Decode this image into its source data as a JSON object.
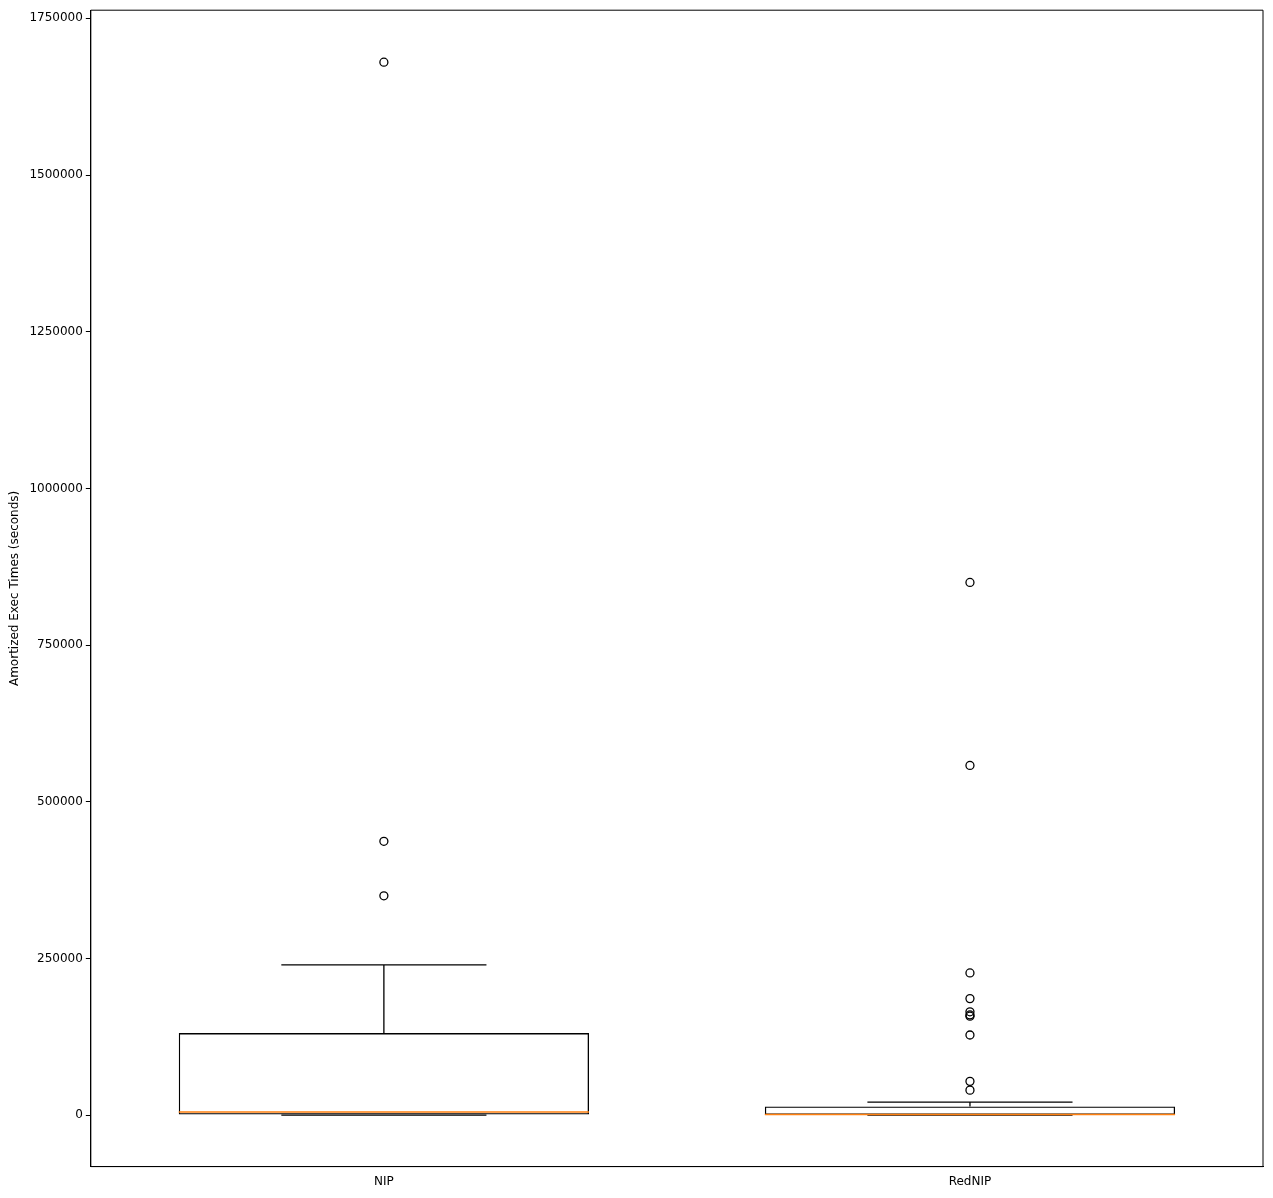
{
  "chart_data": {
    "type": "box",
    "ylabel": "Amortized Exec Times (seconds)",
    "categories": [
      "NIP",
      "RedNIP"
    ],
    "boxes": [
      {
        "low": 100,
        "q1": 1000,
        "median": 5000,
        "q3": 131000,
        "high": 240000,
        "outliers": [
          1680000,
          437000,
          350000
        ]
      },
      {
        "low": 100,
        "q1": 500,
        "median": 1000,
        "q3": 14000,
        "high": 21000,
        "outliers": [
          850000,
          558000,
          227000,
          186000,
          165000,
          160000,
          158000,
          128000,
          54000,
          40000
        ]
      }
    ],
    "ylim": [
      -82000,
      1763000
    ],
    "yticks": [
      0,
      250000,
      500000,
      750000,
      1000000,
      1250000,
      1500000,
      1750000
    ],
    "grid": false
  }
}
